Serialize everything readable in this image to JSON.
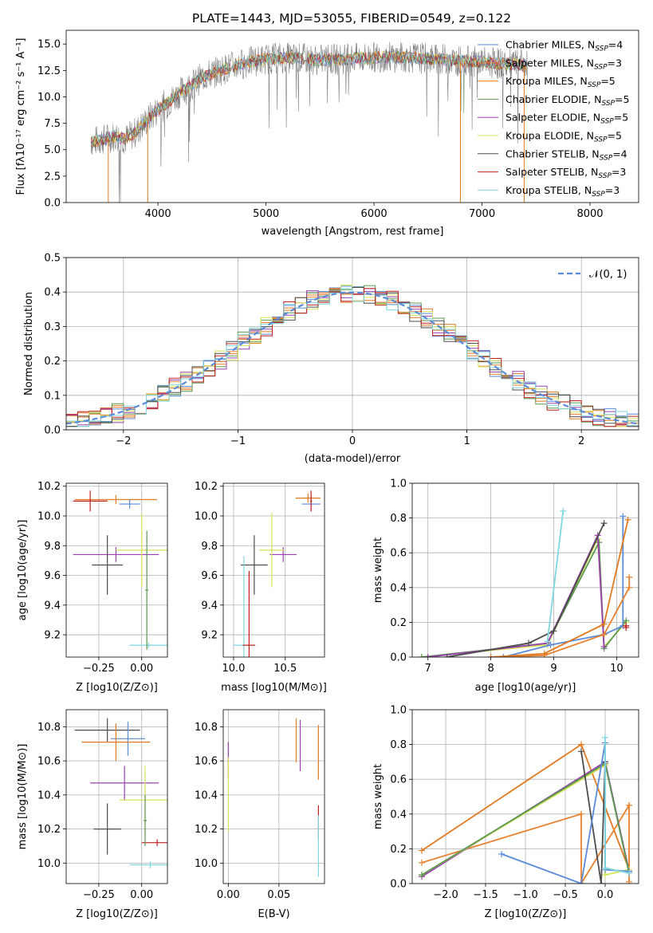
{
  "title": "PLATE=1443, MJD=53055, FIBERID=0549, z=0.122",
  "colors": {
    "Chabrier MILES": "#5b8bd8",
    "Salpeter MILES": "#e8802c",
    "Kroupa MILES": "#e07a20",
    "Chabrier ELODIE": "#5a9a50",
    "Salpeter ELODIE": "#9b40b0",
    "Kroupa ELODIE": "#d6e35a",
    "Chabrier STELIB": "#4d4d4d",
    "Salpeter STELIB": "#c02020",
    "Kroupa STELIB": "#7fd6e0",
    "data": "#808080"
  },
  "chart_data": [
    {
      "id": "spectrum",
      "type": "line",
      "title": "PLATE=1443, MJD=53055, FIBERID=0549, z=0.122",
      "xlabel": "wavelength [Angstrom, rest frame]",
      "ylabel": "Flux [fλ10⁻¹⁷ erg cm⁻² s⁻¹ A⁻¹]",
      "xlim": [
        3150,
        8450
      ],
      "ylim": [
        0,
        16.3
      ],
      "xticks": [
        4000,
        5000,
        6000,
        7000,
        8000
      ],
      "yticks": [
        0.0,
        2.5,
        5.0,
        7.5,
        10.0,
        12.5,
        15.0
      ],
      "legend_position": "top-right",
      "legend": [
        "Chabrier MILES, N_SSP=4",
        "Salpeter MILES, N_SSP=3",
        "Kroupa MILES, N_SSP=5",
        "Chabrier ELODIE, N_SSP=5",
        "Salpeter ELODIE, N_SSP=5",
        "Kroupa ELODIE, N_SSP=5",
        "Chabrier STELIB, N_SSP=4",
        "Salpeter STELIB, N_SSP=3",
        "Kroupa STELIB, N_SSP=3"
      ],
      "continuum_x": [
        3400,
        3500,
        3600,
        3700,
        3800,
        3900,
        4000,
        4100,
        4200,
        4300,
        4400,
        4600,
        4800,
        5000,
        5200,
        5500,
        5800,
        6100,
        6400,
        6700,
        7000,
        7200,
        7400
      ],
      "continuum_y": [
        5.8,
        6.0,
        6.3,
        6.0,
        6.7,
        7.8,
        8.8,
        9.5,
        10.4,
        11.0,
        11.8,
        12.6,
        13.2,
        13.6,
        13.7,
        13.5,
        13.6,
        13.8,
        13.7,
        13.5,
        13.3,
        13.1,
        13.0
      ],
      "grid": false
    },
    {
      "id": "residuals",
      "type": "line",
      "xlabel": "(data-model)/error",
      "ylabel": "Normed distribution",
      "xlim": [
        -2.5,
        2.5
      ],
      "ylim": [
        0,
        0.5
      ],
      "xticks": [
        -2,
        -1,
        0,
        1,
        2
      ],
      "yticks": [
        0.0,
        0.1,
        0.2,
        0.3,
        0.4,
        0.5
      ],
      "legend": [
        "𝒩(0, 1)"
      ],
      "legend_position": "top-right",
      "grid": true,
      "series_note": "histograms of normalized residuals for 9 model fits plus gaussian N(0,1)"
    },
    {
      "id": "age-vs-Z",
      "type": "scatter",
      "xlabel": "Z [log10(Z/Z⊙)]",
      "ylabel": "age  [log10(age/yr)]",
      "xlim": [
        -0.44,
        0.15
      ],
      "ylim": [
        9.05,
        10.22
      ],
      "xticks": [
        -0.25,
        0.0
      ],
      "yticks": [
        9.2,
        9.4,
        9.6,
        9.8,
        10.0,
        10.2
      ],
      "grid": true
    },
    {
      "id": "age-vs-mass",
      "type": "scatter",
      "xlabel": "mass [log10(M/M⊙)]",
      "ylabel": "",
      "xlim": [
        9.9,
        10.88
      ],
      "ylim": [
        9.05,
        10.22
      ],
      "xticks": [
        10.0,
        10.5
      ],
      "yticks": [
        9.2,
        9.4,
        9.6,
        9.8,
        10.0,
        10.2
      ],
      "grid": true
    },
    {
      "id": "weight-vs-age",
      "type": "line",
      "xlabel": "age  [log10(age/yr)]",
      "ylabel": "mass weight",
      "xlim": [
        6.75,
        10.35
      ],
      "ylim": [
        0,
        1.0
      ],
      "xticks": [
        7,
        8,
        9,
        10
      ],
      "yticks": [
        0.0,
        0.2,
        0.4,
        0.6,
        0.8,
        1.0
      ],
      "grid": true
    },
    {
      "id": "mass-vs-Z",
      "type": "scatter",
      "xlabel": "Z [log10(Z/Z⊙)]",
      "ylabel": "mass [log10(M/M⊙)]",
      "xlim": [
        -0.44,
        0.15
      ],
      "ylim": [
        9.88,
        10.9
      ],
      "xticks": [
        -0.25,
        0.0
      ],
      "yticks": [
        10.0,
        10.2,
        10.4,
        10.6,
        10.8
      ],
      "grid": true
    },
    {
      "id": "mass-vs-EBV",
      "type": "scatter",
      "xlabel": "E(B-V)",
      "ylabel": "",
      "xlim": [
        -0.005,
        0.095
      ],
      "ylim": [
        9.88,
        10.9
      ],
      "xticks": [
        0.0,
        0.05
      ],
      "yticks": [
        10.0,
        10.2,
        10.4,
        10.6,
        10.8
      ],
      "grid": true
    },
    {
      "id": "weight-vs-Z",
      "type": "line",
      "xlabel": "Z [log10(Z/Z⊙)]",
      "ylabel": "mass weight",
      "xlim": [
        -2.42,
        0.42
      ],
      "ylim": [
        0,
        1.0
      ],
      "xticks": [
        -2.0,
        -1.5,
        -1.0,
        -0.5,
        0.0
      ],
      "yticks": [
        0.0,
        0.2,
        0.4,
        0.6,
        0.8,
        1.0
      ],
      "grid": true
    }
  ]
}
